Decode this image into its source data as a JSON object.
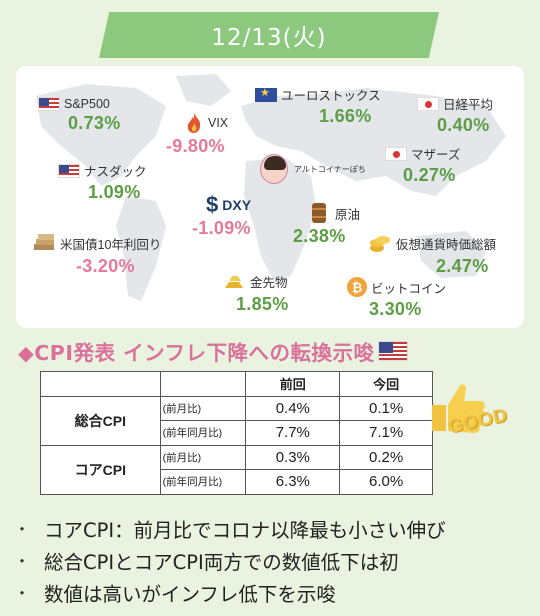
{
  "header": {
    "date": "12/13(火)"
  },
  "tickers": [
    {
      "id": "sp500",
      "name": "S&P500",
      "value": "0.73%",
      "direction": "up",
      "icon": "us-flag-icon"
    },
    {
      "id": "vix",
      "name": "VIX",
      "value": "-9.80%",
      "direction": "down",
      "icon": "fire-icon"
    },
    {
      "id": "eurostoxx",
      "name": "ユーロストックス",
      "value": "1.66%",
      "direction": "up",
      "icon": "eu-flag-icon"
    },
    {
      "id": "nikkei",
      "name": "日経平均",
      "value": "0.40%",
      "direction": "up",
      "icon": "jp-flag-icon"
    },
    {
      "id": "nasdaq",
      "name": "ナスダック",
      "value": "1.09%",
      "direction": "up",
      "icon": "us-flag-icon"
    },
    {
      "id": "mothers",
      "name": "マザーズ",
      "value": "0.27%",
      "direction": "up",
      "icon": "jp-flag-icon"
    },
    {
      "id": "dxy",
      "name": "DXY",
      "value": "-1.09%",
      "direction": "down",
      "icon": "dollar-icon"
    },
    {
      "id": "crude",
      "name": "原油",
      "value": "2.38%",
      "direction": "up",
      "icon": "oil-barrel-icon"
    },
    {
      "id": "us10y",
      "name": "米国債10年利回り",
      "value": "-3.20%",
      "direction": "down",
      "icon": "bond-stack-icon"
    },
    {
      "id": "crypto",
      "name": "仮想通貨時価総額",
      "value": "2.47%",
      "direction": "up",
      "icon": "coin-stack-icon"
    },
    {
      "id": "gold",
      "name": "金先物",
      "value": "1.85%",
      "direction": "up",
      "icon": "gold-bar-icon"
    },
    {
      "id": "bitcoin",
      "name": "ビットコイン",
      "value": "3.30%",
      "direction": "up",
      "icon": "bitcoin-icon"
    }
  ],
  "author": {
    "name": "アルトコイナーぽち"
  },
  "colors": {
    "up": "#5c9e46",
    "down": "#e57a9a",
    "banner": "#8cc97f",
    "headline": "#d9719b"
  },
  "headline": {
    "text": "◆CPI発表 インフレ下降への転換示唆"
  },
  "table": {
    "columns": [
      "",
      "",
      "前回",
      "今回"
    ],
    "groups": [
      {
        "label": "総合CPI",
        "rows": [
          {
            "period": "(前月比)",
            "prev": "0.4%",
            "curr": "0.1%"
          },
          {
            "period": "(前年同月比)",
            "prev": "7.7%",
            "curr": "7.1%"
          }
        ]
      },
      {
        "label": "コアCPI",
        "rows": [
          {
            "period": "(前月比)",
            "prev": "0.3%",
            "curr": "0.2%"
          },
          {
            "period": "(前年同月比)",
            "prev": "6.3%",
            "curr": "6.0%"
          }
        ]
      }
    ]
  },
  "stamp": {
    "text": "GOOD"
  },
  "bullets": [
    "コアCPI：前月比でコロナ以降最も小さい伸び",
    "総合CPIとコアCPI両方での数値低下は初",
    "数値は高いがインフレ低下を示唆"
  ],
  "bullet_marker": "・"
}
